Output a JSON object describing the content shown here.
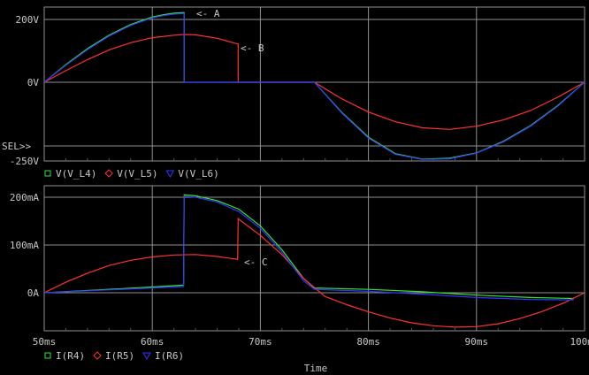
{
  "chart_data": [
    {
      "type": "line",
      "title": "",
      "ylabel": "",
      "x_unit": "ms",
      "xlim": [
        50,
        100
      ],
      "ylim": [
        -250,
        250
      ],
      "y_ticks": [
        {
          "value": 200,
          "label": "200V"
        },
        {
          "value": 0,
          "label": "0V"
        },
        {
          "value": -250,
          "label": "-250V"
        }
      ],
      "selector_label": "SEL>>",
      "series": [
        {
          "name": "V(V_L4)",
          "color": "#33e633",
          "marker": "square",
          "x": [
            50,
            52,
            54,
            56,
            58,
            60,
            61,
            62,
            62.9,
            62.95,
            62.95,
            75,
            77.5,
            80,
            82.5,
            85,
            87.5,
            90,
            92.5,
            95,
            97.5,
            100
          ],
          "y": [
            0,
            56,
            107,
            150,
            184,
            208,
            215,
            220,
            222,
            222,
            0,
            0,
            -95,
            -175,
            -228,
            -245,
            -242,
            -225,
            -188,
            -138,
            -75,
            0
          ]
        },
        {
          "name": "V(V_L5)",
          "color": "#ff3333",
          "marker": "diamond",
          "x": [
            50,
            52,
            54,
            56,
            58,
            60,
            62,
            63,
            64,
            66,
            67.9,
            67.95,
            67.95,
            75,
            77.5,
            80,
            82.5,
            85,
            87.5,
            90,
            92.5,
            95,
            97.5,
            100
          ],
          "y": [
            0,
            37,
            72,
            103,
            126,
            142,
            150,
            152,
            151,
            140,
            122,
            122,
            0,
            0,
            -52,
            -95,
            -126,
            -145,
            -150,
            -140,
            -120,
            -90,
            -48,
            0
          ]
        },
        {
          "name": "V(V_L6)",
          "color": "#3333ff",
          "marker": "triangle",
          "x": [
            50,
            52,
            54,
            56,
            58,
            60,
            61,
            62,
            62.9,
            62.95,
            62.95,
            75,
            77.5,
            80,
            82.5,
            85,
            87.5,
            90,
            92.5,
            95,
            97.5,
            100
          ],
          "y": [
            0,
            54,
            104,
            147,
            181,
            205,
            212,
            217,
            219,
            219,
            0,
            0,
            -97,
            -178,
            -230,
            -246,
            -244,
            -226,
            -190,
            -140,
            -77,
            0
          ]
        }
      ]
    },
    {
      "type": "line",
      "title": "",
      "xlabel": "Time",
      "x_unit": "ms",
      "xlim": [
        50,
        100
      ],
      "ylim": [
        -90,
        215
      ],
      "x_ticks": [
        {
          "value": 50,
          "label": "50ms"
        },
        {
          "value": 60,
          "label": "60ms"
        },
        {
          "value": 70,
          "label": "70ms"
        },
        {
          "value": 80,
          "label": "80ms"
        },
        {
          "value": 90,
          "label": "90ms"
        },
        {
          "value": 100,
          "label": "100ms"
        }
      ],
      "y_ticks": [
        {
          "value": 200,
          "label": "200mA"
        },
        {
          "value": 100,
          "label": "100mA"
        },
        {
          "value": 0,
          "label": "0A"
        }
      ],
      "series": [
        {
          "name": "I(R4)",
          "color": "#33e633",
          "marker": "square",
          "x": [
            50,
            55,
            60,
            62.9,
            62.95,
            64,
            66,
            68,
            70,
            72,
            74,
            75,
            80,
            85,
            90,
            95,
            99
          ],
          "y": [
            0,
            6,
            12,
            16,
            205,
            203,
            193,
            175,
            140,
            90,
            30,
            10,
            7,
            2,
            -5,
            -10,
            -12
          ]
        },
        {
          "name": "I(R5)",
          "color": "#ff3333",
          "marker": "diamond",
          "x": [
            50,
            52,
            54,
            56,
            58,
            60,
            62,
            64,
            66,
            67.9,
            67.95,
            70,
            72,
            74,
            76,
            78,
            80,
            82,
            84,
            86,
            88,
            90,
            92,
            94,
            96,
            98,
            100
          ],
          "y": [
            0,
            22,
            41,
            57,
            68,
            75,
            79,
            80,
            76,
            70,
            155,
            120,
            80,
            30,
            -8,
            -25,
            -40,
            -53,
            -63,
            -69,
            -72,
            -71,
            -65,
            -54,
            -40,
            -22,
            0
          ]
        },
        {
          "name": "I(R6)",
          "color": "#3333ff",
          "marker": "triangle",
          "x": [
            50,
            55,
            60,
            62.9,
            62.95,
            64,
            66,
            68,
            70,
            72,
            74,
            75,
            80,
            85,
            90,
            95,
            99
          ],
          "y": [
            0,
            5,
            10,
            13,
            202,
            200,
            190,
            170,
            135,
            85,
            25,
            7,
            3,
            -3,
            -10,
            -14,
            -15
          ]
        }
      ]
    }
  ],
  "annotations": [
    {
      "text": "<- A"
    },
    {
      "text": "<- B"
    },
    {
      "text": "<- C"
    }
  ]
}
